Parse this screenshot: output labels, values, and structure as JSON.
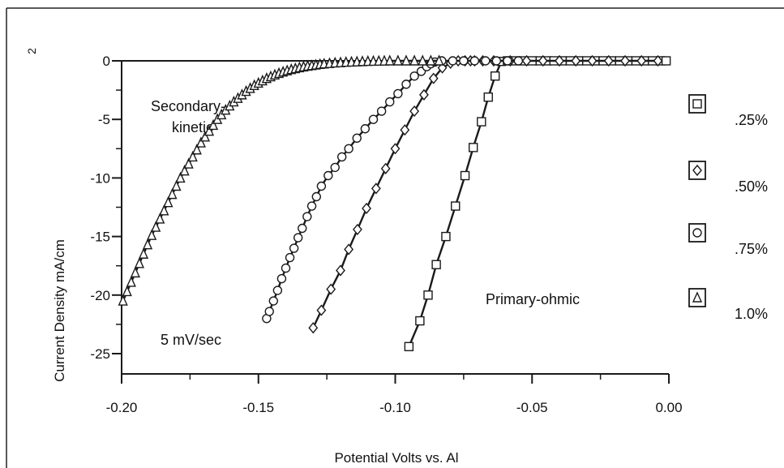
{
  "chart_data": {
    "type": "line",
    "title": "",
    "xlabel": "Potential  Volts vs. Al",
    "ylabel": "Current Density  mA/cm",
    "ylabel_superscript": "2",
    "xlim": [
      -0.2,
      0.0
    ],
    "ylim": [
      -25,
      0
    ],
    "x_ticks": [
      {
        "value": -0.2,
        "label": "-0.20"
      },
      {
        "value": -0.15,
        "label": "-0.15"
      },
      {
        "value": -0.1,
        "label": "-0.10"
      },
      {
        "value": -0.05,
        "label": "-0.05"
      },
      {
        "value": 0.0,
        "label": "0.00"
      }
    ],
    "y_ticks": [
      {
        "value": 0,
        "label": "0"
      },
      {
        "value": -5,
        "label": "-5"
      },
      {
        "value": -10,
        "label": "-10"
      },
      {
        "value": -15,
        "label": "-15"
      },
      {
        "value": -20,
        "label": "-20"
      },
      {
        "value": -25,
        "label": "-25"
      }
    ],
    "grid": false,
    "legend_position": "right",
    "annotations": [
      {
        "id": "secondary",
        "lines": [
          "Secondary-",
          "kinetic"
        ]
      },
      {
        "id": "primary",
        "lines": [
          "Primary-ohmic"
        ]
      },
      {
        "id": "rate",
        "lines": [
          "5 mV/sec"
        ]
      }
    ],
    "series": [
      {
        "name": ".25%",
        "marker": "square",
        "x": [
          -0.095,
          -0.091,
          -0.088,
          -0.085,
          -0.0815,
          -0.078,
          -0.0745,
          -0.0715,
          -0.0685,
          -0.066,
          -0.0635,
          -0.0612,
          -0.059,
          -0.056,
          -0.053,
          -0.05,
          -0.047,
          -0.0445,
          -0.042,
          -0.039,
          -0.036,
          -0.033,
          -0.03,
          -0.027,
          -0.024,
          -0.021,
          -0.018,
          -0.015,
          -0.012,
          -0.009,
          -0.006,
          -0.003,
          -0.001
        ],
        "y": [
          -24.4,
          -22.2,
          -20.0,
          -17.4,
          -15.0,
          -12.4,
          -9.8,
          -7.4,
          -5.2,
          -3.1,
          -1.3,
          -0.05,
          0,
          0,
          0,
          0,
          0,
          0,
          0,
          0,
          0,
          0,
          0,
          0,
          0,
          0,
          0,
          0,
          0,
          0,
          0,
          0,
          0
        ]
      },
      {
        "name": ".50%",
        "marker": "diamond",
        "x": [
          -0.13,
          -0.127,
          -0.1235,
          -0.12,
          -0.117,
          -0.1138,
          -0.1105,
          -0.107,
          -0.1035,
          -0.1,
          -0.0965,
          -0.093,
          -0.0895,
          -0.086,
          -0.0828,
          -0.0798,
          -0.077,
          -0.0745,
          -0.0725,
          -0.071,
          -0.068,
          -0.064,
          -0.058,
          -0.052,
          -0.046,
          -0.04,
          -0.034,
          -0.028,
          -0.022,
          -0.016,
          -0.01,
          -0.004
        ],
        "y": [
          -22.8,
          -21.3,
          -19.5,
          -17.9,
          -16.1,
          -14.4,
          -12.6,
          -10.9,
          -9.2,
          -7.5,
          -5.9,
          -4.3,
          -2.9,
          -1.5,
          -0.6,
          -0.2,
          0,
          0,
          0,
          0,
          0,
          0,
          0,
          0,
          0,
          0,
          0,
          0,
          0,
          0,
          0,
          0
        ]
      },
      {
        "name": ".75%",
        "marker": "circle",
        "x": [
          -0.147,
          -0.146,
          -0.1445,
          -0.143,
          -0.1415,
          -0.14,
          -0.1385,
          -0.137,
          -0.1355,
          -0.134,
          -0.1322,
          -0.1305,
          -0.1288,
          -0.127,
          -0.1245,
          -0.122,
          -0.1195,
          -0.117,
          -0.114,
          -0.111,
          -0.108,
          -0.105,
          -0.102,
          -0.099,
          -0.096,
          -0.093,
          -0.0905,
          -0.0885,
          -0.087,
          -0.0855,
          -0.083,
          -0.079,
          -0.075,
          -0.071,
          -0.067,
          -0.063,
          -0.059,
          -0.055
        ],
        "y": [
          -22.0,
          -21.4,
          -20.5,
          -19.6,
          -18.6,
          -17.7,
          -16.8,
          -16.0,
          -15.1,
          -14.3,
          -13.3,
          -12.4,
          -11.6,
          -10.7,
          -9.8,
          -9.1,
          -8.2,
          -7.5,
          -6.6,
          -5.8,
          -5.0,
          -4.3,
          -3.5,
          -2.8,
          -2.0,
          -1.3,
          -0.9,
          -0.5,
          -0.25,
          -0.1,
          0,
          0,
          0,
          0,
          0,
          0,
          0,
          0
        ]
      },
      {
        "name": "1.0%",
        "marker": "triangle",
        "x": [
          -0.1995,
          -0.198,
          -0.1965,
          -0.195,
          -0.1935,
          -0.192,
          -0.1905,
          -0.189,
          -0.1875,
          -0.186,
          -0.1845,
          -0.183,
          -0.1815,
          -0.18,
          -0.1785,
          -0.177,
          -0.1755,
          -0.174,
          -0.1725,
          -0.171,
          -0.1695,
          -0.168,
          -0.1665,
          -0.165,
          -0.1635,
          -0.162,
          -0.1605,
          -0.159,
          -0.1575,
          -0.156,
          -0.1545,
          -0.153,
          -0.1515,
          -0.15,
          -0.1485,
          -0.147,
          -0.1455,
          -0.144,
          -0.1425,
          -0.141,
          -0.1395,
          -0.138,
          -0.1365,
          -0.135,
          -0.1335,
          -0.132,
          -0.1305,
          -0.129,
          -0.1275,
          -0.126,
          -0.124,
          -0.122,
          -0.12,
          -0.118,
          -0.116,
          -0.114,
          -0.112,
          -0.11,
          -0.108,
          -0.106,
          -0.104,
          -0.102,
          -0.099,
          -0.096,
          -0.093,
          -0.09,
          -0.087,
          -0.084
        ],
        "y": [
          -20.5,
          -19.7,
          -18.9,
          -18.1,
          -17.3,
          -16.5,
          -15.7,
          -14.9,
          -14.2,
          -13.5,
          -12.8,
          -12.1,
          -11.4,
          -10.7,
          -10.0,
          -9.4,
          -8.8,
          -8.2,
          -7.6,
          -7.0,
          -6.5,
          -6.0,
          -5.5,
          -5.0,
          -4.6,
          -4.2,
          -3.85,
          -3.5,
          -3.2,
          -2.9,
          -2.6,
          -2.35,
          -2.1,
          -1.9,
          -1.7,
          -1.5,
          -1.35,
          -1.2,
          -1.07,
          -0.95,
          -0.84,
          -0.74,
          -0.66,
          -0.58,
          -0.51,
          -0.45,
          -0.4,
          -0.35,
          -0.3,
          -0.26,
          -0.22,
          -0.18,
          -0.15,
          -0.12,
          -0.1,
          -0.08,
          -0.06,
          -0.04,
          -0.03,
          -0.02,
          -0.01,
          0,
          0,
          0,
          0,
          0,
          0,
          0
        ]
      }
    ]
  }
}
